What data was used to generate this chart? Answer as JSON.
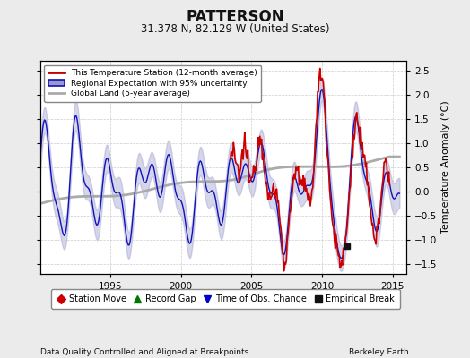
{
  "title": "PATTERSON",
  "subtitle": "31.378 N, 82.129 W (United States)",
  "ylabel": "Temperature Anomaly (°C)",
  "xlabel_left": "Data Quality Controlled and Aligned at Breakpoints",
  "xlabel_right": "Berkeley Earth",
  "ylim": [
    -1.7,
    2.7
  ],
  "xlim": [
    1990,
    2016
  ],
  "xticks": [
    1995,
    2000,
    2005,
    2010,
    2015
  ],
  "yticks": [
    -1.5,
    -1.0,
    -0.5,
    0.0,
    0.5,
    1.0,
    1.5,
    2.0,
    2.5
  ],
  "bg_color": "#ebebeb",
  "plot_bg_color": "#ffffff",
  "red_line_color": "#cc0000",
  "blue_line_color": "#1111bb",
  "blue_fill_color": "#9999cc",
  "gray_line_color": "#aaaaaa",
  "empirical_break_year": 2011.8,
  "empirical_break_val": -1.12,
  "legend_entries": [
    "This Temperature Station (12-month average)",
    "Regional Expectation with 95% uncertainty",
    "Global Land (5-year average)"
  ],
  "legend_marker_entries": [
    {
      "label": "Station Move",
      "color": "#cc0000",
      "marker": "D"
    },
    {
      "label": "Record Gap",
      "color": "#007700",
      "marker": "^"
    },
    {
      "label": "Time of Obs. Change",
      "color": "#0000cc",
      "marker": "v"
    },
    {
      "label": "Empirical Break",
      "color": "#111111",
      "marker": "s"
    }
  ]
}
